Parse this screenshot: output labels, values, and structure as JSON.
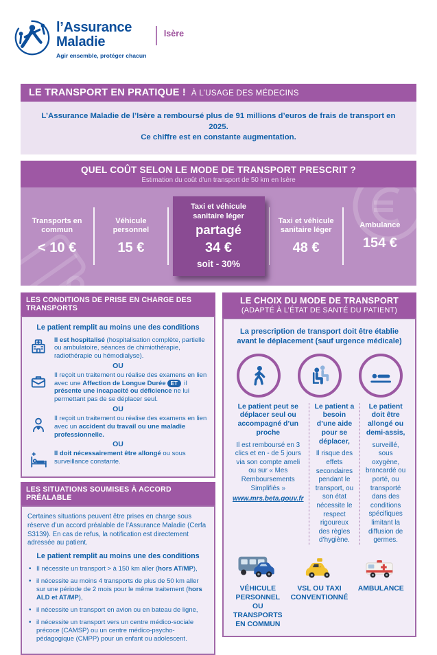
{
  "colors": {
    "purple": "#9e58a4",
    "band": "#ba8fc3",
    "highlight": "#8a4b93",
    "blue": "#1566ab",
    "navy": "#0d4f9b",
    "light_bg": "#ece3f1"
  },
  "header": {
    "brand_line1": "l’Assurance",
    "brand_line2": "Maladie",
    "tagline": "Agir ensemble, protéger chacun",
    "region": "Isère"
  },
  "banner": {
    "title": "LE TRANSPORT EN PRATIQUE !",
    "audience": "À L’USAGE DES MÉDECINS"
  },
  "intro": {
    "line1": "L’Assurance Maladie de l’Isère a remboursé plus de 91 millions d’euros de frais de transport en 2025.",
    "line2": "Ce chiffre est en constante augmentation."
  },
  "cost": {
    "title": "QUEL COÛT SELON LE MODE DE TRANSPORT PRESCRIT ?",
    "subtitle": "Estimation du coût d’un transport de 50 km en Isère",
    "columns": [
      {
        "label": "Transports en commun",
        "price": "< 10 €"
      },
      {
        "label": "Véhicule personnel",
        "price": "15 €"
      },
      {
        "label": "Taxi et véhicule sanitaire léger",
        "emphasis": "partagé",
        "price": "34 €",
        "note": "soit - 30%"
      },
      {
        "label": "Taxi et véhicule sanitaire léger",
        "price": "48 €"
      },
      {
        "label": "Ambulance",
        "price": "154 €"
      }
    ]
  },
  "conditions": {
    "title": "LES CONDITIONS DE PRISE EN CHARGE DES TRANSPORTS",
    "lead": "Le patient remplit au moins une des conditions",
    "or_label": "OU",
    "items": [
      {
        "icon": "hospital-icon",
        "segments": [
          {
            "t": "Il est hospitalisé",
            "b": true
          },
          {
            "t": " (hospitalisation complète, partielle ou ambulatoire, séances de chimiothérapie, radiothérapie ou hémodialyse)."
          }
        ]
      },
      {
        "icon": "briefcase-icon",
        "segments": [
          {
            "t": "Il reçoit un traitement ou réalise des examens en lien avec une "
          },
          {
            "t": "Affection de Longue Durée",
            "b": true
          },
          {
            "t": "ET",
            "badge": true
          },
          {
            "t": " il "
          },
          {
            "t": "présente une incapacité ou déficience",
            "b": true
          },
          {
            "t": " ne lui permettant pas de se déplacer seul."
          }
        ]
      },
      {
        "icon": "patient-heart-icon",
        "segments": [
          {
            "t": "Il reçoit un traitement ou réalise des examens en lien avec un "
          },
          {
            "t": "accident du travail ou une maladie professionnelle.",
            "b": true
          }
        ]
      },
      {
        "icon": "hospital-bed-icon",
        "segments": [
          {
            "t": "Il doit nécessairement être allongé",
            "b": true
          },
          {
            "t": " ou sous surveillance constante."
          }
        ]
      }
    ]
  },
  "approval": {
    "title": "LES SITUATIONS SOUMISES À ACCORD PRÉALABLE",
    "intro": "Certaines situations peuvent être prises en charge sous réserve d’un accord préalable de l’Assurance Maladie (Cerfa S3139). En cas de refus, la notification est directement adressée au patient.",
    "lead": "Le patient remplit au moins une des conditions",
    "bullets": [
      [
        {
          "t": "Il nécessite un transport > à 150 km aller ("
        },
        {
          "t": "hors AT/MP",
          "b": true
        },
        {
          "t": "),"
        }
      ],
      [
        {
          "t": "il nécessite au moins 4 transports de plus de 50 km aller sur une période de 2 mois pour le même traitement ("
        },
        {
          "t": "hors ALD et AT/MP",
          "b": true
        },
        {
          "t": "),"
        }
      ],
      [
        {
          "t": "il nécessite un transport en avion ou en bateau de ligne,"
        }
      ],
      [
        {
          "t": "il nécessite un transport vers un centre médico-sociale précoce (CAMSP) ou un centre médico-psycho-pédagogique (CMPP) pour un enfant ou adolescent."
        }
      ]
    ]
  },
  "choice": {
    "title": "LE CHOIX DU MODE DE TRANSPORT",
    "subtitle": "(ADAPTÉ À L’ÉTAT DE SANTÉ DU PATIENT)",
    "intro": "La prescription de transport doit être établie avant le déplacement (sauf urgence médicale)",
    "columns": [
      {
        "heading": "Le patient peut se déplacer seul ou accompagné d’un proche",
        "body": "Il est remboursé en 3 clics et en - de 5 jours via son compte ameli ou sur « Mes Remboursements Simplifiés »",
        "link": "www.mrs.beta.gouv.fr",
        "vehicle_label": "VÉHICULE PERSONNEL OU TRANSPORTS EN COMMUN"
      },
      {
        "heading": "Le patient a besoin d’une aide pour se déplacer,",
        "body": "Il risque des effets secondaires pendant le transport, ou son état nécessite le respect rigoureux des règles d’hygiène.",
        "vehicle_label": "VSL OU TAXI CONVENTIONNÉ"
      },
      {
        "heading": "Le patient doit être allongé ou demi-assis,",
        "body": "surveillé, sous oxygène, brancardé ou porté, ou transporté dans des conditions spécifiques limitant la diffusion de germes.",
        "vehicle_label": "AMBULANCE"
      }
    ]
  }
}
